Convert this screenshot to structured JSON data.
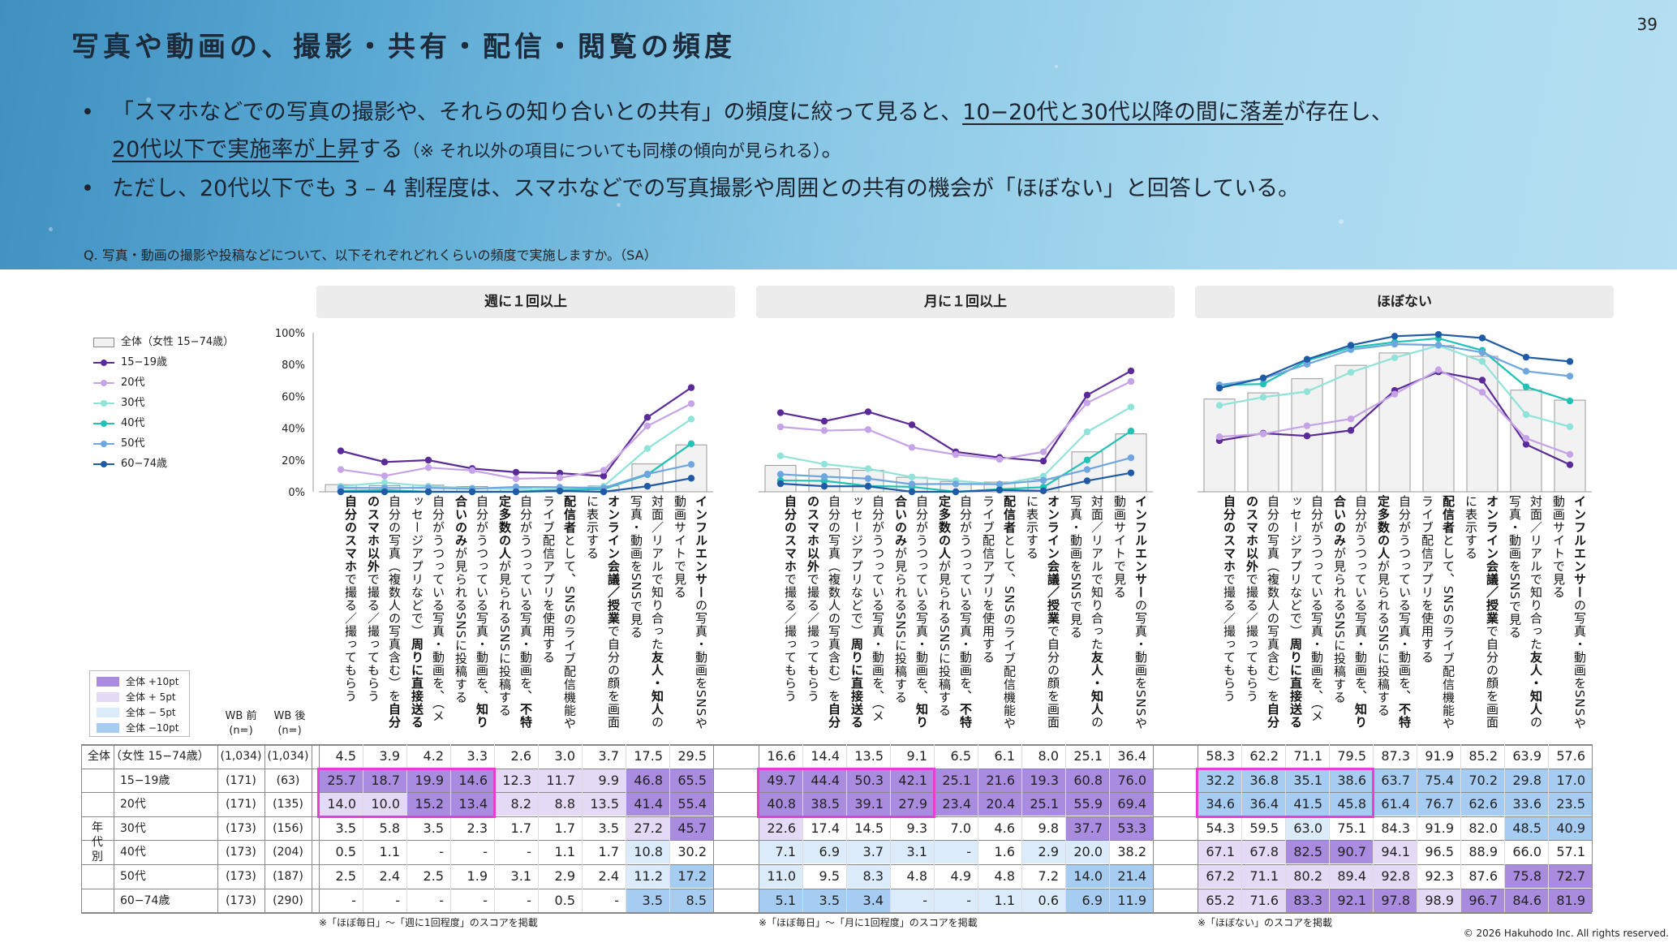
{
  "page": {
    "title": "写真や動画の、撮影・共有・配信・閲覧の頻度",
    "page_number": "39",
    "bullets": [
      {
        "line1_a": "「スマホなどでの写真の撮影や、それらの知り合いとの共有」の頻度に絞って見ると、",
        "line1_u": "10−20代と30代以降の間に落差",
        "line1_b": "が存在し、",
        "line2_u": "20代以下で実施率が上昇",
        "line2_b": "する",
        "line2_note": "（※ それ以外の項目についても同様の傾向が見られる）",
        "line2_end": "。"
      },
      {
        "line1": "ただし、20代以下でも 3 – 4 割程度は、スマホなどでの写真撮影や周囲との共有の機会が「ほぼない」と回答している。"
      }
    ],
    "question": "Q. 写真・動画の撮影や投稿などについて、以下それぞれどれくらいの頻度で実施しますか。（SA）",
    "copyright": "© 2026 Hakuhodo Inc. All rights reserved."
  },
  "legend": {
    "series": [
      {
        "label": "全体（女性 15−74歳）",
        "color": "#e8e8e8",
        "kind": "bar"
      },
      {
        "label": "15−19歳",
        "color": "#5b2a99",
        "kind": "line"
      },
      {
        "label": "20代",
        "color": "#c5a3e6",
        "kind": "line"
      },
      {
        "label": "30代",
        "color": "#8fe3d8",
        "kind": "line"
      },
      {
        "label": "40代",
        "color": "#20c2b5",
        "kind": "line"
      },
      {
        "label": "50代",
        "color": "#6fa6e0",
        "kind": "line"
      },
      {
        "label": "60−74歳",
        "color": "#1f5aa6",
        "kind": "line"
      }
    ],
    "shading": [
      {
        "label": "全体 +10pt",
        "color": "#a98be0"
      },
      {
        "label": "全体 +  5pt",
        "color": "#e4daf5"
      },
      {
        "label": "全体 −  5pt",
        "color": "#dcebf9"
      },
      {
        "label": "全体 −10pt",
        "color": "#a6cdf1"
      }
    ]
  },
  "table": {
    "wb_before_label": "WB 前",
    "wb_after_label": "WB 後",
    "n_label": "(n=)",
    "total_label": "全体（女性 15−74歳）",
    "age_group_label": "年代別",
    "rows": [
      {
        "label": "15−19歳",
        "wb_before": "(171)",
        "wb_after": "(63)"
      },
      {
        "label": "20代",
        "wb_before": "(171)",
        "wb_after": "(135)"
      },
      {
        "label": "30代",
        "wb_before": "(173)",
        "wb_after": "(156)"
      },
      {
        "label": "40代",
        "wb_before": "(173)",
        "wb_after": "(204)"
      },
      {
        "label": "50代",
        "wb_before": "(173)",
        "wb_after": "(187)"
      },
      {
        "label": "60−74歳",
        "wb_before": "(173)",
        "wb_after": "(290)"
      }
    ],
    "total_row": {
      "wb_before": "(1,034)",
      "wb_after": "(1,034)"
    }
  },
  "items": [
    {
      "bold": "自分のスマホ",
      "rest": "で撮る／撮ってもらう",
      "bold_first": true
    },
    {
      "bold": "",
      "rest": "自分の写真（複数人の写真含む）を",
      "extra_bold": "自分のスマホ以外",
      "extra_rest": "で撮る／撮ってもらう"
    },
    {
      "bold": "",
      "rest": "自分がうつっている写真・動画を、（メッセージアプリなどで）",
      "extra_bold": "周りに直接送る",
      "extra_rest": ""
    },
    {
      "bold": "",
      "rest": "自分がうつっている写真・動画を、",
      "extra_bold": "知り合いのみ",
      "extra_rest": "が見られるSNSに投稿する"
    },
    {
      "bold": "",
      "rest": "自分がうつっている写真・動画を、",
      "extra_bold": "不特定多数の人",
      "extra_rest": "が見られるSNSに投稿する"
    },
    {
      "bold": "配信者",
      "rest": "として、SNSのライブ配信機能やライブ配信アプリを使用する",
      "bold_first": true
    },
    {
      "bold": "オンライン会議／授業",
      "rest": "で自分の顔を画面に表示する",
      "bold_first": true
    },
    {
      "bold": "",
      "rest": "対面／リアルで知り合った",
      "extra_bold": "友人・知人",
      "extra_rest": "の写真・動画をSNSで見る"
    },
    {
      "bold": "インフルエンサー",
      "rest": "の写真・動画をSNSや動画サイトで見る",
      "bold_first": true
    }
  ],
  "chart_data": [
    {
      "type": "bar+line",
      "title": "週に１回以上",
      "footnote": "※「ほぼ毎日」～「週に1回程度」のスコアを掲載",
      "ylim": [
        0,
        100
      ],
      "yticks": [
        "0%",
        "20%",
        "40%",
        "60%",
        "80%",
        "100%"
      ],
      "series": [
        {
          "name": "全体（女性 15−74歳）",
          "values": [
            4.5,
            3.9,
            4.2,
            3.3,
            2.6,
            3.0,
            3.7,
            17.5,
            29.5
          ]
        },
        {
          "name": "15−19歳",
          "values": [
            25.7,
            18.7,
            19.9,
            14.6,
            12.3,
            11.7,
            9.9,
            46.8,
            65.5
          ]
        },
        {
          "name": "20代",
          "values": [
            14.0,
            10.0,
            15.2,
            13.4,
            8.2,
            8.8,
            13.5,
            41.4,
            55.4
          ]
        },
        {
          "name": "30代",
          "values": [
            3.5,
            5.8,
            3.5,
            2.3,
            1.7,
            1.7,
            3.5,
            27.2,
            45.7
          ]
        },
        {
          "name": "40代",
          "values": [
            0.5,
            1.1,
            "-",
            "-",
            "-",
            1.1,
            1.7,
            10.8,
            30.2
          ]
        },
        {
          "name": "50代",
          "values": [
            2.5,
            2.4,
            2.5,
            1.9,
            3.1,
            2.9,
            2.4,
            11.2,
            17.2
          ]
        },
        {
          "name": "60−74歳",
          "values": [
            "-",
            "-",
            "-",
            "-",
            "-",
            0.5,
            "-",
            3.5,
            8.5
          ]
        }
      ]
    },
    {
      "type": "bar+line",
      "title": "月に１回以上",
      "footnote": "※「ほぼ毎日」～「月に1回程度」のスコアを掲載",
      "ylim": [
        0,
        100
      ],
      "series": [
        {
          "name": "全体（女性 15−74歳）",
          "values": [
            16.6,
            14.4,
            13.5,
            9.1,
            6.5,
            6.1,
            8.0,
            25.1,
            36.4
          ]
        },
        {
          "name": "15−19歳",
          "values": [
            49.7,
            44.4,
            50.3,
            42.1,
            25.1,
            21.6,
            19.3,
            60.8,
            76.0
          ]
        },
        {
          "name": "20代",
          "values": [
            40.8,
            38.5,
            39.1,
            27.9,
            23.4,
            20.4,
            25.1,
            55.9,
            69.4
          ]
        },
        {
          "name": "30代",
          "values": [
            22.6,
            17.4,
            14.5,
            9.3,
            7.0,
            4.6,
            9.8,
            37.7,
            53.3
          ]
        },
        {
          "name": "40代",
          "values": [
            7.1,
            6.9,
            3.7,
            3.1,
            "-",
            1.6,
            2.9,
            20.0,
            38.2
          ]
        },
        {
          "name": "50代",
          "values": [
            11.0,
            9.5,
            8.3,
            4.8,
            4.9,
            4.8,
            7.2,
            14.0,
            21.4
          ]
        },
        {
          "name": "60−74歳",
          "values": [
            5.1,
            3.5,
            3.4,
            "-",
            "-",
            1.1,
            0.6,
            6.9,
            11.9
          ]
        }
      ]
    },
    {
      "type": "bar+line",
      "title": "ほぼない",
      "footnote": "※「ほぼない」のスコアを掲載",
      "ylim": [
        0,
        100
      ],
      "series": [
        {
          "name": "全体（女性 15−74歳）",
          "values": [
            58.3,
            62.2,
            71.1,
            79.5,
            87.3,
            91.9,
            85.2,
            63.9,
            57.6
          ]
        },
        {
          "name": "15−19歳",
          "values": [
            32.2,
            36.8,
            35.1,
            38.6,
            63.7,
            75.4,
            70.2,
            29.8,
            17.0
          ]
        },
        {
          "name": "20代",
          "values": [
            34.6,
            36.4,
            41.5,
            45.8,
            61.4,
            76.7,
            62.6,
            33.6,
            23.5
          ]
        },
        {
          "name": "30代",
          "values": [
            54.3,
            59.5,
            63.0,
            75.1,
            84.3,
            91.9,
            82.0,
            48.5,
            40.9
          ]
        },
        {
          "name": "40代",
          "values": [
            67.1,
            67.8,
            82.5,
            90.7,
            94.1,
            96.5,
            88.9,
            66.0,
            57.1
          ]
        },
        {
          "name": "50代",
          "values": [
            67.2,
            71.1,
            80.2,
            89.4,
            92.8,
            92.3,
            87.6,
            75.8,
            72.7
          ]
        },
        {
          "name": "60−74歳",
          "values": [
            65.2,
            71.6,
            83.3,
            92.1,
            97.8,
            98.9,
            96.7,
            84.6,
            81.9
          ]
        }
      ]
    }
  ]
}
